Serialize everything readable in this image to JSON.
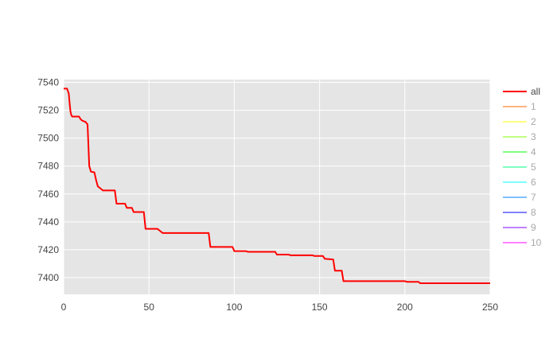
{
  "chart_data": {
    "type": "line",
    "title": "",
    "xlabel": "",
    "ylabel": "",
    "xlim": [
      0,
      250
    ],
    "ylim": [
      7388,
      7542
    ],
    "xticks": [
      0,
      50,
      100,
      150,
      200,
      250
    ],
    "yticks": [
      7400,
      7420,
      7440,
      7460,
      7480,
      7500,
      7520,
      7540
    ],
    "grid": true,
    "legend_position": "right",
    "series": [
      {
        "name": "all",
        "color": "#ff0000",
        "x": [
          0,
          2,
          3,
          3.5,
          4,
          4.5,
          5,
          6,
          9,
          10,
          11,
          13,
          13.5,
          14,
          14.5,
          15,
          16,
          18,
          19,
          20,
          21,
          23,
          30,
          31,
          36,
          37,
          40,
          41,
          47,
          48,
          55,
          57,
          58,
          85,
          86,
          99,
          100,
          107,
          108,
          124,
          125,
          132,
          133,
          146,
          147,
          152,
          153,
          158,
          159,
          163,
          164,
          200,
          201,
          208,
          209,
          250
        ],
        "y": [
          7535.5,
          7535.5,
          7532,
          7525,
          7519,
          7516.5,
          7515.5,
          7515.5,
          7515.5,
          7513.5,
          7512.5,
          7511.5,
          7510.5,
          7510,
          7495,
          7480,
          7476,
          7475.5,
          7470,
          7465.5,
          7464.5,
          7462.5,
          7462.5,
          7453,
          7453,
          7450,
          7450,
          7447,
          7447,
          7435,
          7435,
          7433,
          7432,
          7432,
          7422,
          7422,
          7419,
          7419,
          7418.5,
          7418.5,
          7416.5,
          7416.5,
          7416,
          7416,
          7415.5,
          7415.5,
          7413.5,
          7413,
          7405,
          7405,
          7397.5,
          7397.5,
          7397,
          7397,
          7396,
          7396
        ]
      },
      {
        "name": "1",
        "color": "#ffb380",
        "x": [],
        "y": []
      },
      {
        "name": "2",
        "color": "#ffff80",
        "x": [],
        "y": []
      },
      {
        "name": "3",
        "color": "#c0ff80",
        "x": [],
        "y": []
      },
      {
        "name": "4",
        "color": "#80ff80",
        "x": [],
        "y": []
      },
      {
        "name": "5",
        "color": "#80ffc0",
        "x": [],
        "y": []
      },
      {
        "name": "6",
        "color": "#80ffff",
        "x": [],
        "y": []
      },
      {
        "name": "7",
        "color": "#80c0ff",
        "x": [],
        "y": []
      },
      {
        "name": "8",
        "color": "#8080ff",
        "x": [],
        "y": []
      },
      {
        "name": "9",
        "color": "#c080ff",
        "x": [],
        "y": []
      },
      {
        "name": "10",
        "color": "#ff80ff",
        "x": [],
        "y": []
      }
    ]
  }
}
